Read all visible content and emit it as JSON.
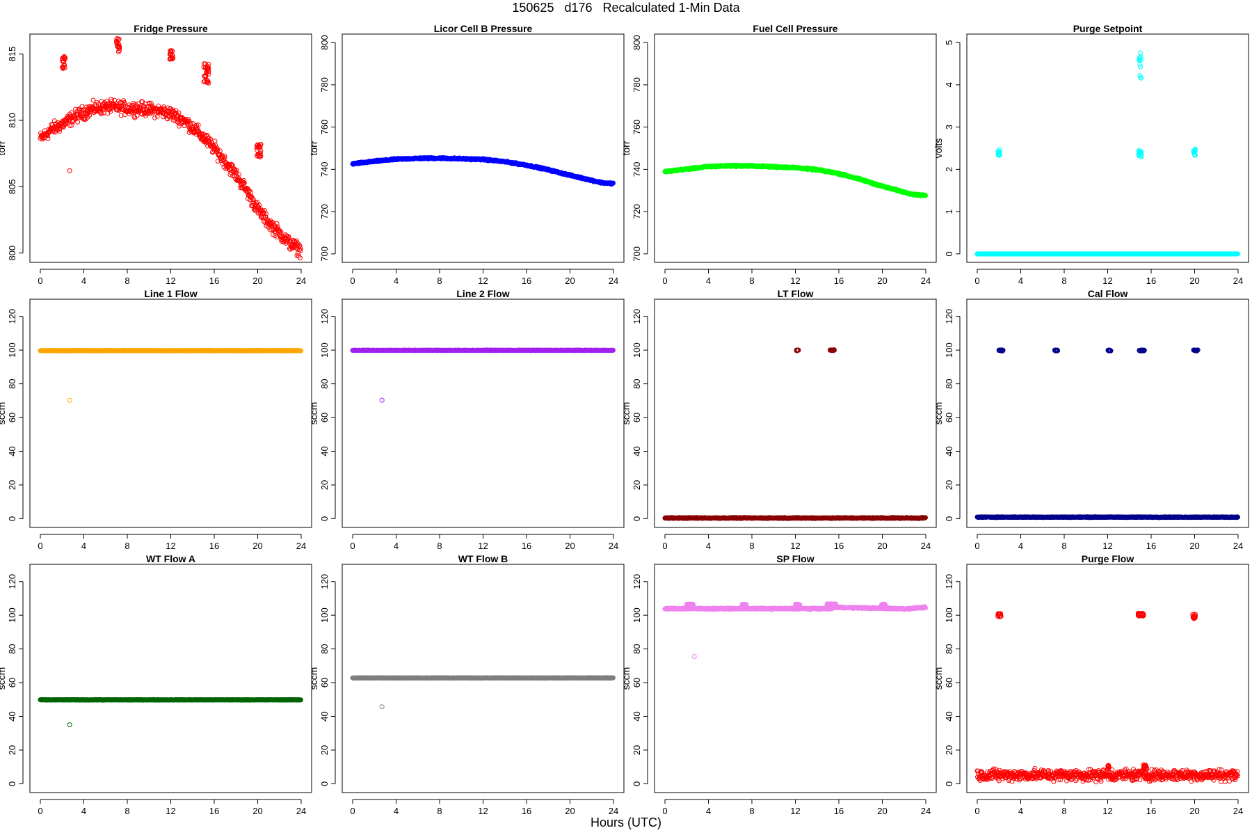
{
  "figure": {
    "title": "150625   d176   Recalculated 1-Min Data",
    "xlabel": "Hours (UTC)"
  },
  "chart_data": [
    {
      "type": "scatter",
      "title": "Fridge Pressure",
      "ylabel": "torr",
      "color": "#ff0000",
      "xlim": [
        -0.96,
        24.96
      ],
      "ylim": [
        799.3,
        816.5
      ],
      "xticks": [
        0,
        4,
        8,
        12,
        16,
        20,
        24
      ],
      "yticks": [
        800,
        805,
        810,
        815
      ],
      "baseline": [
        [
          0,
          808.6
        ],
        [
          1,
          809.3
        ],
        [
          2,
          809.7
        ],
        [
          3,
          810.2
        ],
        [
          4,
          810.6
        ],
        [
          5,
          810.9
        ],
        [
          6,
          811.0
        ],
        [
          7,
          811.0
        ],
        [
          8,
          810.9
        ],
        [
          9,
          810.9
        ],
        [
          10,
          810.8
        ],
        [
          11,
          810.7
        ],
        [
          12,
          810.5
        ],
        [
          13,
          810.1
        ],
        [
          14,
          809.5
        ],
        [
          15,
          808.7
        ],
        [
          16,
          807.9
        ],
        [
          17,
          806.9
        ],
        [
          18,
          805.9
        ],
        [
          19,
          804.7
        ],
        [
          20,
          803.3
        ],
        [
          21,
          802.3
        ],
        [
          22,
          801.5
        ],
        [
          23,
          800.7
        ],
        [
          24,
          800.2
        ]
      ],
      "noise": 0.35,
      "clusters": [
        [
          2.0,
          2.3,
          813.8,
          814.8
        ],
        [
          7.0,
          7.3,
          815.1,
          816.2
        ],
        [
          11.9,
          12.2,
          814.6,
          815.4
        ],
        [
          15.0,
          15.5,
          812.8,
          814.3
        ],
        [
          19.9,
          20.3,
          807.2,
          808.2
        ],
        [
          2.7,
          2.7,
          806.2,
          806.2
        ]
      ]
    },
    {
      "type": "scatter",
      "title": "Licor Cell B Pressure",
      "ylabel": "torr",
      "color": "#0000ff",
      "xlim": [
        -0.96,
        24.96
      ],
      "ylim": [
        696.0,
        804.0
      ],
      "xticks": [
        0,
        4,
        8,
        12,
        16,
        20,
        24
      ],
      "yticks": [
        700,
        720,
        740,
        760,
        780,
        800
      ],
      "baseline": [
        [
          0,
          742.6
        ],
        [
          2,
          743.8
        ],
        [
          4,
          744.8
        ],
        [
          6,
          745.2
        ],
        [
          8,
          745.3
        ],
        [
          10,
          745.0
        ],
        [
          12,
          744.7
        ],
        [
          14,
          743.6
        ],
        [
          16,
          742.0
        ],
        [
          18,
          739.8
        ],
        [
          20,
          737.2
        ],
        [
          22,
          734.8
        ],
        [
          23,
          733.6
        ],
        [
          24,
          733.3
        ]
      ],
      "noise": 0.25,
      "clusters": []
    },
    {
      "type": "scatter",
      "title": "Fuel Cell Pressure",
      "ylabel": "torr",
      "color": "#00ff00",
      "xlim": [
        -0.96,
        24.96
      ],
      "ylim": [
        696.0,
        804.0
      ],
      "xticks": [
        0,
        4,
        8,
        12,
        16,
        20,
        24
      ],
      "yticks": [
        700,
        720,
        740,
        760,
        780,
        800
      ],
      "baseline": [
        [
          0,
          738.9
        ],
        [
          2,
          740.1
        ],
        [
          4,
          741.3
        ],
        [
          6,
          741.7
        ],
        [
          8,
          741.6
        ],
        [
          10,
          741.2
        ],
        [
          12,
          740.8
        ],
        [
          14,
          739.8
        ],
        [
          16,
          738.0
        ],
        [
          18,
          735.2
        ],
        [
          20,
          732.0
        ],
        [
          22,
          729.2
        ],
        [
          23,
          728.0
        ],
        [
          24,
          727.7
        ]
      ],
      "noise": 0.25,
      "clusters": []
    },
    {
      "type": "scatter",
      "title": "Purge Setpoint",
      "ylabel": "volts",
      "color": "#00ffff",
      "xlim": [
        -0.96,
        24.96
      ],
      "ylim": [
        -0.2,
        5.2
      ],
      "xticks": [
        0,
        4,
        8,
        12,
        16,
        20,
        24
      ],
      "yticks": [
        0,
        1,
        2,
        3,
        4,
        5
      ],
      "baseline": [
        [
          0,
          0.0
        ],
        [
          24,
          0.0
        ]
      ],
      "noise": 0.0,
      "clusters": [
        [
          1.9,
          2.1,
          2.33,
          2.48
        ],
        [
          14.8,
          15.1,
          2.3,
          2.45
        ],
        [
          14.9,
          15.1,
          4.1,
          4.8
        ],
        [
          19.9,
          20.1,
          2.33,
          2.48
        ]
      ]
    },
    {
      "type": "scatter",
      "title": "Line 1 Flow",
      "ylabel": "sccm",
      "color": "#ffa500",
      "xlim": [
        -0.96,
        24.96
      ],
      "ylim": [
        -5.2,
        130.2
      ],
      "xticks": [
        0,
        4,
        8,
        12,
        16,
        20,
        24
      ],
      "yticks": [
        0,
        20,
        40,
        60,
        80,
        100,
        120
      ],
      "baseline": [
        [
          0,
          99.7
        ],
        [
          24,
          99.7
        ]
      ],
      "noise": 0.1,
      "clusters": [
        [
          2.7,
          2.7,
          70.2,
          70.2
        ]
      ]
    },
    {
      "type": "scatter",
      "title": "Line 2 Flow",
      "ylabel": "sccm",
      "color": "#a020f0",
      "xlim": [
        -0.96,
        24.96
      ],
      "ylim": [
        -5.2,
        130.2
      ],
      "xticks": [
        0,
        4,
        8,
        12,
        16,
        20,
        24
      ],
      "yticks": [
        0,
        20,
        40,
        60,
        80,
        100,
        120
      ],
      "baseline": [
        [
          0,
          99.9
        ],
        [
          24,
          99.9
        ]
      ],
      "noise": 0.1,
      "clusters": [
        [
          2.7,
          2.7,
          70.3,
          70.3
        ]
      ]
    },
    {
      "type": "scatter",
      "title": "LT Flow",
      "ylabel": "sccm",
      "color": "#8b0000",
      "xlim": [
        -0.96,
        24.96
      ],
      "ylim": [
        -5.2,
        130.2
      ],
      "xticks": [
        0,
        4,
        8,
        12,
        16,
        20,
        24
      ],
      "yticks": [
        0,
        20,
        40,
        60,
        80,
        100,
        120
      ],
      "baseline": [
        [
          0,
          0.4
        ],
        [
          24,
          0.4
        ]
      ],
      "noise": 0.2,
      "clusters": [
        [
          12.1,
          12.3,
          99.6,
          100.1
        ],
        [
          15.2,
          15.6,
          99.7,
          100.2
        ]
      ]
    },
    {
      "type": "scatter",
      "title": "Cal Flow",
      "ylabel": "sccm",
      "color": "#00008b",
      "xlim": [
        -0.96,
        24.96
      ],
      "ylim": [
        -5.2,
        130.2
      ],
      "xticks": [
        0,
        4,
        8,
        12,
        16,
        20,
        24
      ],
      "yticks": [
        0,
        20,
        40,
        60,
        80,
        100,
        120
      ],
      "baseline": [
        [
          0,
          0.9
        ],
        [
          24,
          0.9
        ]
      ],
      "noise": 0.15,
      "clusters": [
        [
          2.0,
          2.4,
          99.5,
          100.1
        ],
        [
          7.1,
          7.4,
          99.5,
          100.1
        ],
        [
          12.0,
          12.3,
          99.5,
          100.1
        ],
        [
          14.9,
          15.4,
          99.5,
          100.1
        ],
        [
          19.9,
          20.3,
          99.5,
          100.1
        ]
      ]
    },
    {
      "type": "scatter",
      "title": "WT Flow A",
      "ylabel": "sccm",
      "color": "#006400",
      "xlim": [
        -0.96,
        24.96
      ],
      "ylim": [
        -5.2,
        130.2
      ],
      "xticks": [
        0,
        4,
        8,
        12,
        16,
        20,
        24
      ],
      "yticks": [
        0,
        20,
        40,
        60,
        80,
        100,
        120
      ],
      "baseline": [
        [
          0,
          49.8
        ],
        [
          24,
          49.8
        ]
      ],
      "noise": 0.1,
      "clusters": [
        [
          2.7,
          2.7,
          35.0,
          35.0
        ]
      ]
    },
    {
      "type": "scatter",
      "title": "WT Flow B",
      "ylabel": "sccm",
      "color": "#7f7f7f",
      "xlim": [
        -0.96,
        24.96
      ],
      "ylim": [
        -5.2,
        130.2
      ],
      "xticks": [
        0,
        4,
        8,
        12,
        16,
        20,
        24
      ],
      "yticks": [
        0,
        20,
        40,
        60,
        80,
        100,
        120
      ],
      "baseline": [
        [
          0,
          62.8
        ],
        [
          24,
          62.8
        ]
      ],
      "noise": 0.1,
      "clusters": [
        [
          2.7,
          2.7,
          45.7,
          45.7
        ]
      ]
    },
    {
      "type": "scatter",
      "title": "SP Flow",
      "ylabel": "sccm",
      "color": "#ee82ee",
      "xlim": [
        -0.96,
        24.96
      ],
      "ylim": [
        -5.2,
        130.2
      ],
      "xticks": [
        0,
        4,
        8,
        12,
        16,
        20,
        24
      ],
      "yticks": [
        0,
        20,
        40,
        60,
        80,
        100,
        120
      ],
      "baseline": [
        [
          0,
          103.9
        ],
        [
          15.3,
          103.9
        ],
        [
          15.4,
          104.7
        ],
        [
          24,
          104.7
        ],
        [
          22.2,
          103.8
        ]
      ],
      "noise": 0.25,
      "clusters": [
        [
          2.0,
          2.6,
          105.8,
          106.6
        ],
        [
          7.1,
          7.5,
          105.8,
          106.5
        ],
        [
          12.0,
          12.4,
          105.8,
          106.6
        ],
        [
          14.9,
          15.8,
          105.9,
          106.8
        ],
        [
          19.9,
          20.3,
          105.8,
          106.6
        ],
        [
          2.7,
          2.7,
          75.5,
          75.5
        ]
      ]
    },
    {
      "type": "scatter",
      "title": "Purge Flow",
      "ylabel": "sccm",
      "color": "#ff0000",
      "xlim": [
        -0.96,
        24.96
      ],
      "ylim": [
        -5.2,
        130.2
      ],
      "xticks": [
        0,
        4,
        8,
        12,
        16,
        20,
        24
      ],
      "yticks": [
        0,
        20,
        40,
        60,
        80,
        100,
        120
      ],
      "baseline": [
        [
          0,
          5.2
        ],
        [
          24,
          5.2
        ]
      ],
      "noise": 2.4,
      "clusters": [
        [
          1.9,
          2.2,
          99.0,
          101.0
        ],
        [
          14.8,
          15.3,
          99.5,
          101.2
        ],
        [
          19.8,
          20.1,
          98.0,
          100.8
        ],
        [
          15.3,
          15.6,
          8.0,
          11.5
        ],
        [
          12.0,
          12.2,
          8.5,
          11.0
        ]
      ]
    }
  ]
}
